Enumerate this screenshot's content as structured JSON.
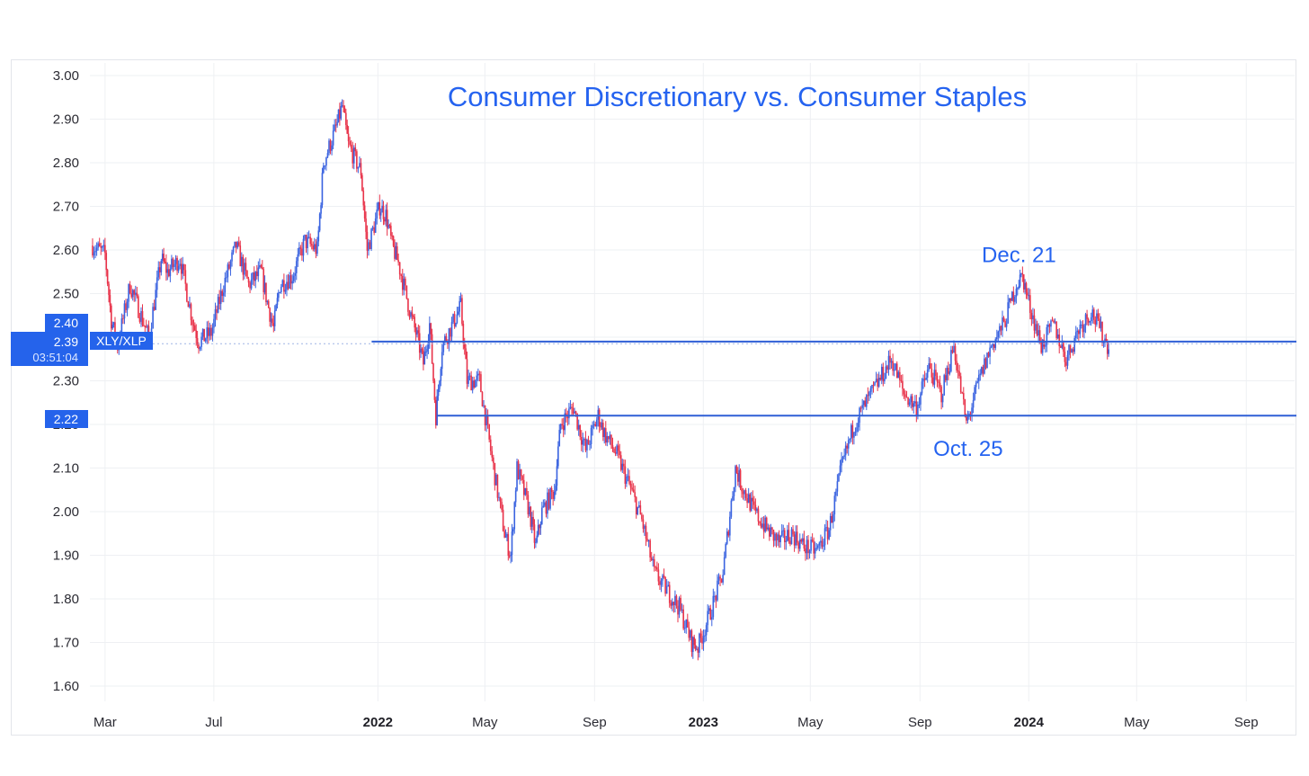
{
  "chart_data": {
    "type": "candlestick",
    "title": "Consumer Discretionary vs. Consumer Staples",
    "symbol": "XLY/XLP",
    "y_ticks": [
      "3.00",
      "2.90",
      "2.80",
      "2.70",
      "2.60",
      "2.50",
      "2.40",
      "2.30",
      "2.20",
      "2.10",
      "2.00",
      "1.90",
      "1.80",
      "1.70",
      "1.60"
    ],
    "ylim": [
      1.56,
      3.03
    ],
    "x_ticks": [
      {
        "label": "Mar",
        "bold": false,
        "x": "2021-03-01"
      },
      {
        "label": "Jul",
        "bold": false,
        "x": "2021-07-01"
      },
      {
        "label": "2022",
        "bold": true,
        "x": "2022-01-01"
      },
      {
        "label": "May",
        "bold": false,
        "x": "2022-05-01"
      },
      {
        "label": "Sep",
        "bold": false,
        "x": "2022-09-01"
      },
      {
        "label": "2023",
        "bold": true,
        "x": "2023-01-01"
      },
      {
        "label": "May",
        "bold": false,
        "x": "2023-05-01"
      },
      {
        "label": "Sep",
        "bold": false,
        "x": "2023-09-01"
      },
      {
        "label": "2024",
        "bold": true,
        "x": "2024-01-01"
      },
      {
        "label": "May",
        "bold": false,
        "x": "2024-05-01"
      },
      {
        "label": "Sep",
        "bold": false,
        "x": "2024-09-01"
      }
    ],
    "xlim": [
      "2021-02-12",
      "2024-10-05"
    ],
    "series": [
      {
        "values": [
          [
            "2021-02-15",
            2.61
          ],
          [
            "2021-03-01",
            2.59
          ],
          [
            "2021-03-08",
            2.44
          ],
          [
            "2021-03-15",
            2.38
          ],
          [
            "2021-03-29",
            2.52
          ],
          [
            "2021-04-12",
            2.44
          ],
          [
            "2021-04-19",
            2.4
          ],
          [
            "2021-05-03",
            2.58
          ],
          [
            "2021-05-10",
            2.55
          ],
          [
            "2021-05-24",
            2.58
          ],
          [
            "2021-06-07",
            2.44
          ],
          [
            "2021-06-14",
            2.39
          ],
          [
            "2021-06-28",
            2.41
          ],
          [
            "2021-07-12",
            2.52
          ],
          [
            "2021-07-26",
            2.61
          ],
          [
            "2021-08-09",
            2.52
          ],
          [
            "2021-08-23",
            2.55
          ],
          [
            "2021-08-30",
            2.48
          ],
          [
            "2021-09-06",
            2.42
          ],
          [
            "2021-09-13",
            2.52
          ],
          [
            "2021-09-27",
            2.54
          ],
          [
            "2021-10-11",
            2.62
          ],
          [
            "2021-10-25",
            2.6
          ],
          [
            "2021-11-01",
            2.8
          ],
          [
            "2021-11-15",
            2.88
          ],
          [
            "2021-11-22",
            2.93
          ],
          [
            "2021-11-29",
            2.84
          ],
          [
            "2021-12-13",
            2.78
          ],
          [
            "2021-12-20",
            2.6
          ],
          [
            "2022-01-03",
            2.7
          ],
          [
            "2022-01-10",
            2.68
          ],
          [
            "2022-01-17",
            2.61
          ],
          [
            "2022-01-24",
            2.57
          ],
          [
            "2022-02-07",
            2.45
          ],
          [
            "2022-02-14",
            2.4
          ],
          [
            "2022-02-21",
            2.34
          ],
          [
            "2022-02-28",
            2.43
          ],
          [
            "2022-03-07",
            2.22
          ],
          [
            "2022-03-14",
            2.38
          ],
          [
            "2022-03-28",
            2.44
          ],
          [
            "2022-04-04",
            2.47
          ],
          [
            "2022-04-11",
            2.3
          ],
          [
            "2022-04-25",
            2.3
          ],
          [
            "2022-05-09",
            2.12
          ],
          [
            "2022-05-23",
            1.95
          ],
          [
            "2022-05-30",
            1.9
          ],
          [
            "2022-06-06",
            2.1
          ],
          [
            "2022-06-20",
            2.0
          ],
          [
            "2022-06-27",
            1.92
          ],
          [
            "2022-07-04",
            2.0
          ],
          [
            "2022-07-18",
            2.05
          ],
          [
            "2022-07-25",
            2.2
          ],
          [
            "2022-08-08",
            2.24
          ],
          [
            "2022-08-22",
            2.14
          ],
          [
            "2022-09-05",
            2.22
          ],
          [
            "2022-09-12",
            2.18
          ],
          [
            "2022-09-26",
            2.13
          ],
          [
            "2022-10-10",
            2.06
          ],
          [
            "2022-10-24",
            1.98
          ],
          [
            "2022-11-07",
            1.86
          ],
          [
            "2022-11-21",
            1.82
          ],
          [
            "2022-12-05",
            1.78
          ],
          [
            "2022-12-19",
            1.7
          ],
          [
            "2022-12-26",
            1.69
          ],
          [
            "2023-01-09",
            1.77
          ],
          [
            "2023-01-23",
            1.86
          ],
          [
            "2023-02-06",
            2.1
          ],
          [
            "2023-02-13",
            2.06
          ],
          [
            "2023-02-27",
            2.0
          ],
          [
            "2023-03-13",
            1.96
          ],
          [
            "2023-03-27",
            1.93
          ],
          [
            "2023-04-10",
            1.95
          ],
          [
            "2023-04-24",
            1.92
          ],
          [
            "2023-05-08",
            1.91
          ],
          [
            "2023-05-22",
            1.96
          ],
          [
            "2023-06-05",
            2.1
          ],
          [
            "2023-06-19",
            2.2
          ],
          [
            "2023-07-03",
            2.25
          ],
          [
            "2023-07-17",
            2.3
          ],
          [
            "2023-07-31",
            2.35
          ],
          [
            "2023-08-14",
            2.27
          ],
          [
            "2023-08-28",
            2.24
          ],
          [
            "2023-09-11",
            2.33
          ],
          [
            "2023-09-25",
            2.27
          ],
          [
            "2023-10-09",
            2.38
          ],
          [
            "2023-10-23",
            2.2
          ],
          [
            "2023-11-06",
            2.3
          ],
          [
            "2023-11-20",
            2.38
          ],
          [
            "2023-12-04",
            2.43
          ],
          [
            "2023-12-18",
            2.52
          ],
          [
            "2023-12-25",
            2.54
          ],
          [
            "2024-01-01",
            2.48
          ],
          [
            "2024-01-15",
            2.38
          ],
          [
            "2024-01-29",
            2.43
          ],
          [
            "2024-02-12",
            2.35
          ],
          [
            "2024-02-26",
            2.42
          ],
          [
            "2024-03-11",
            2.46
          ],
          [
            "2024-03-25",
            2.4
          ],
          [
            "2024-04-01",
            2.37
          ]
        ]
      }
    ],
    "horizontal_lines": [
      {
        "value": 2.39,
        "start": "2021-12-25"
      },
      {
        "value": 2.22,
        "start": "2022-03-08"
      }
    ],
    "price_badges": [
      {
        "label": "2.40",
        "value": 2.4
      },
      {
        "label": "2.39",
        "value": 2.39
      },
      {
        "label": "2.22",
        "value": 2.22
      }
    ],
    "symbol_badge": "XLY/XLP",
    "countdown": "03:51:04",
    "annotations": [
      {
        "text": "Dec. 21",
        "x": "2023-12-21",
        "y": 2.56,
        "position": "above"
      },
      {
        "text": "Oct. 25",
        "x": "2023-10-25",
        "y": 2.19,
        "position": "below"
      }
    ],
    "colors": {
      "up": "#3a63e0",
      "down": "#e8334a",
      "line": "#2f5fd6",
      "title": "#2563f0",
      "badge": "#2563eb",
      "grid": "#eef0f3"
    },
    "grid": true
  }
}
